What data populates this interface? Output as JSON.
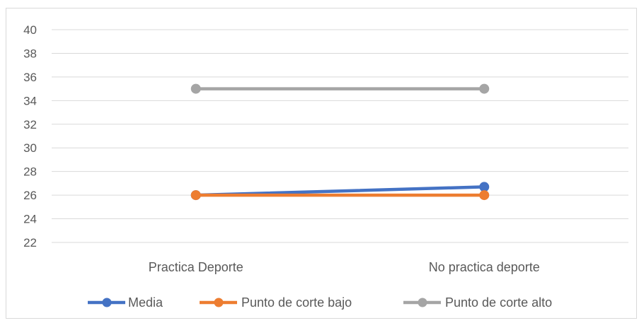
{
  "chart_data": {
    "type": "line",
    "title": "",
    "xlabel": "",
    "ylabel": "",
    "categories": [
      "Practica Deporte",
      "No practica deporte"
    ],
    "ylim": [
      22,
      40
    ],
    "yticks": [
      22,
      24,
      26,
      28,
      30,
      32,
      34,
      36,
      38,
      40
    ],
    "grid": true,
    "legend_position": "bottom",
    "series": [
      {
        "name": "Media",
        "values": [
          26.0,
          26.7
        ],
        "color": "#4472c4"
      },
      {
        "name": "Punto de corte bajo",
        "values": [
          26,
          26
        ],
        "color": "#ed7d31"
      },
      {
        "name": "Punto de corte alto",
        "values": [
          35,
          35
        ],
        "color": "#a5a5a5"
      }
    ]
  }
}
